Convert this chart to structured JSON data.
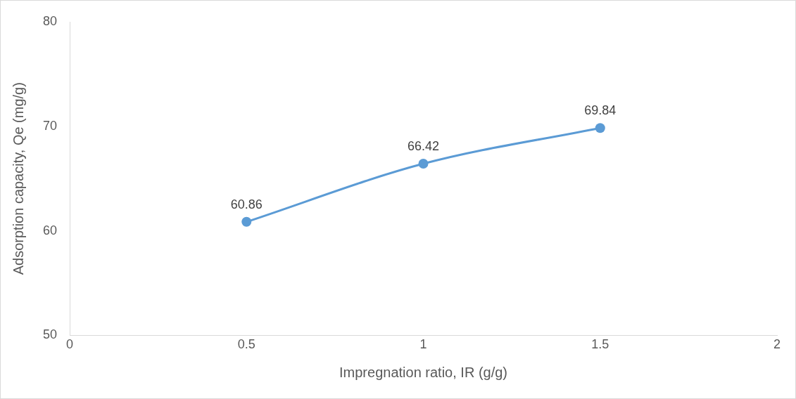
{
  "chart_data": {
    "type": "line",
    "xlabel": "Impregnation ratio, IR (g/g)",
    "ylabel": "Adsorption capacity, Qe (mg/g)",
    "x": [
      0.5,
      1,
      1.5
    ],
    "series": [
      {
        "color": "#5b9bd5",
        "values": [
          60.86,
          66.42,
          69.84
        ]
      }
    ],
    "xlim": [
      0,
      2
    ],
    "xticks": [
      0,
      0.5,
      1,
      1.5,
      2
    ],
    "ylim": [
      50,
      80
    ],
    "yticks": [
      50,
      60,
      70,
      80
    ],
    "grid": false,
    "legend": false,
    "marker": "circle",
    "line_style": "solid",
    "data_labels": true
  }
}
